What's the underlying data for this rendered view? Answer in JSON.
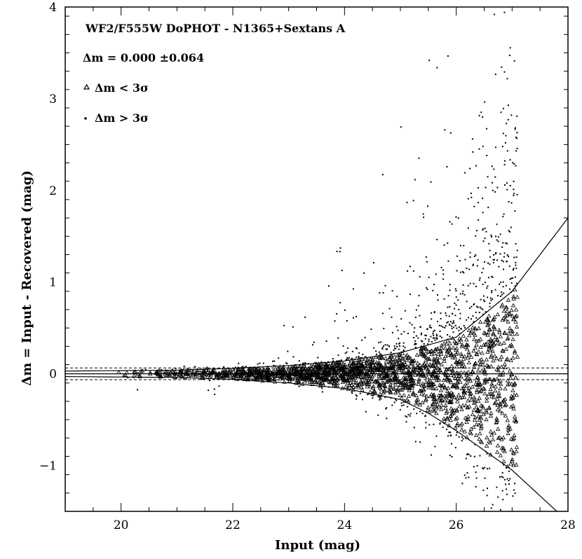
{
  "chart_data": {
    "type": "scatter",
    "title": "WF2/F555W DoPHOT - N1365+Sextans A",
    "annotations": {
      "title": "WF2/F555W DoPHOT - N1365+Sextans A",
      "stat": "Δm = 0.000 ±0.064",
      "legend_lt": "Δm < 3σ",
      "legend_gt": "Δm > 3σ"
    },
    "xlabel": "Input (mag)",
    "ylabel": "Δm = Input - Recovered (mag)",
    "xlim": [
      19,
      28
    ],
    "ylim": [
      -1.5,
      4
    ],
    "xticks": [
      20,
      22,
      24,
      26,
      28
    ],
    "xtick_labels": [
      "20",
      "22",
      "24",
      "26",
      "28"
    ],
    "yticks": [
      -1,
      0,
      1,
      2,
      3,
      4
    ],
    "ytick_labels": [
      "−1",
      "0",
      "1",
      "2",
      "3",
      "4"
    ],
    "mean_line": 0.0,
    "sigma_band": 0.064,
    "dashed_lines": [
      0.064,
      -0.064
    ],
    "envelope": {
      "description": "3-sigma error envelope curve",
      "upper": [
        [
          19,
          0.03
        ],
        [
          21,
          0.04
        ],
        [
          22,
          0.06
        ],
        [
          23,
          0.09
        ],
        [
          24,
          0.14
        ],
        [
          25,
          0.23
        ],
        [
          26,
          0.4
        ],
        [
          27,
          0.9
        ],
        [
          28,
          1.7
        ]
      ],
      "lower": [
        [
          19,
          -0.03
        ],
        [
          21,
          -0.04
        ],
        [
          22,
          -0.06
        ],
        [
          23,
          -0.1
        ],
        [
          24,
          -0.16
        ],
        [
          25,
          -0.28
        ],
        [
          25.5,
          -0.43
        ],
        [
          26,
          -0.62
        ],
        [
          27,
          -1.05
        ],
        [
          27.8,
          -1.5
        ]
      ]
    },
    "series": [
      {
        "name": "Δm < 3σ",
        "marker": "triangle"
      },
      {
        "name": "Δm > 3σ",
        "marker": "point"
      }
    ],
    "grid": false,
    "legend_position": "top-left"
  }
}
